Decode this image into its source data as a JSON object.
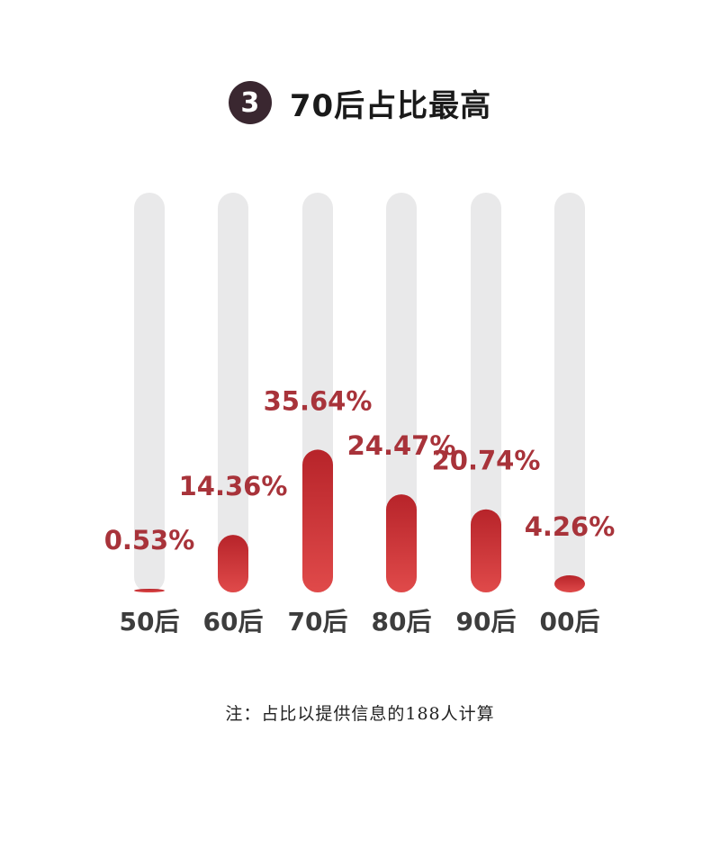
{
  "header": {
    "badge_number": "3",
    "title": "70后占比最高"
  },
  "note": "注：占比以提供信息的188人计算",
  "colors": {
    "badge": "#3a2730",
    "track": "#e9e9ea",
    "bar_top": "#b7242a",
    "bar_bottom": "#e04a4a",
    "label": "#a8333a"
  },
  "chart_data": {
    "type": "bar",
    "categories": [
      "50后",
      "60后",
      "70后",
      "80后",
      "90后",
      "00后"
    ],
    "values": [
      0.53,
      14.36,
      35.64,
      24.47,
      20.74,
      4.26
    ],
    "value_labels": [
      "0.53%",
      "14.36%",
      "35.64%",
      "24.47%",
      "20.74%",
      "4.26%"
    ],
    "title": "70后占比最高",
    "xlabel": "",
    "ylabel": "",
    "ylim": [
      0,
      100
    ],
    "grid": false,
    "legend": "none"
  }
}
